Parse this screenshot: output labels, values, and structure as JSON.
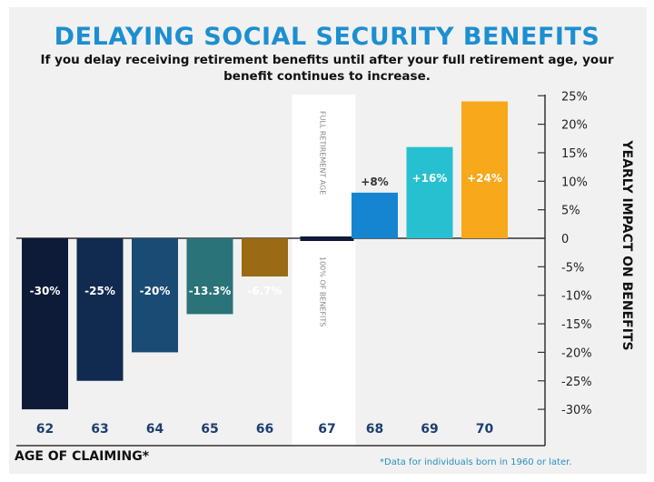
{
  "chart_data": {
    "type": "bar",
    "title": "DELAYING SOCIAL SECURITY BENEFITS",
    "subtitle": "If you delay receiving retirement benefits until after your full retirement age, your benefit continues to increase.",
    "xlabel": "AGE OF CLAIMING*",
    "ylabel": "YEARLY IMPACT ON BENEFITS",
    "footnote": "*Data for individuals born in 1960 or later.",
    "categories": [
      "62",
      "63",
      "64",
      "65",
      "66",
      "67",
      "68",
      "69",
      "70"
    ],
    "values": [
      -30,
      -25,
      -20,
      -13.3,
      -6.7,
      0,
      8,
      16,
      24
    ],
    "data_labels": [
      "-30%",
      "-25%",
      "-20%",
      "-13.3%",
      "-6.7%",
      "",
      "+8%",
      "+16%",
      "+24%"
    ],
    "colors": [
      "#0d1b38",
      "#112a50",
      "#1a4b74",
      "#2a7378",
      "#9a6a14",
      "#0d1b38",
      "#1585d1",
      "#27c0d0",
      "#f7a81b"
    ],
    "ylim": [
      -30,
      25
    ],
    "yticks": [
      "25%",
      "20%",
      "15%",
      "10%",
      "5%",
      "0",
      "-5%",
      "-10%",
      "-15%",
      "-20%",
      "-25%",
      "-30%"
    ],
    "ytick_values": [
      25,
      20,
      15,
      10,
      5,
      0,
      -5,
      -10,
      -15,
      -20,
      -25,
      -30
    ],
    "highlight_band": {
      "category": "67",
      "label_top": "FULL RETIREMENT AGE",
      "label_bottom": "100% OF BENEFITS"
    },
    "y_axis_side": "right",
    "grid": false
  }
}
